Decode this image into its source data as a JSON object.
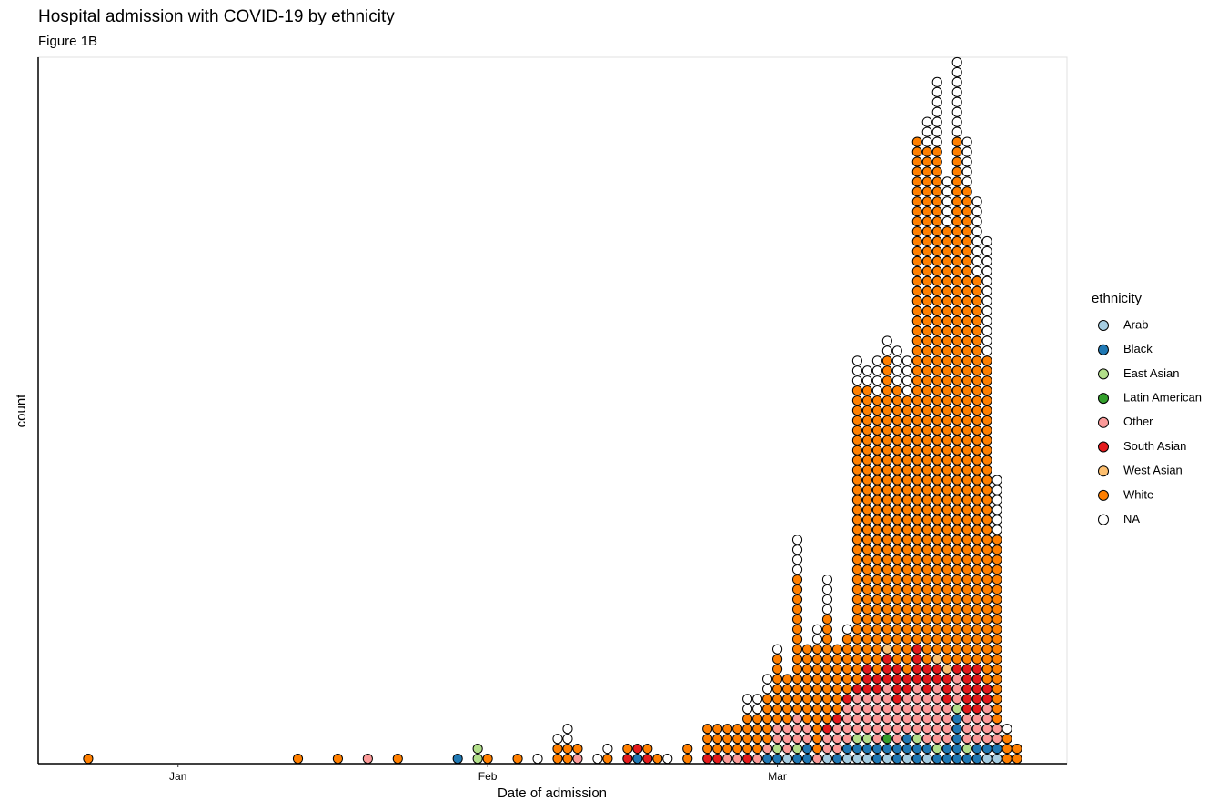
{
  "chart_data": {
    "type": "dotplot",
    "title": "Hospital admission with COVID-19 by ethnicity",
    "subtitle": "Figure 1B",
    "x_label": "Date of admission",
    "y_label": "count",
    "legend_title": "ethnicity",
    "legend": "right",
    "xlim": [
      -14,
      89
    ],
    "ylim": [
      0,
      71
    ],
    "xticks": [
      {
        "value": 0,
        "label": "Jan"
      },
      {
        "value": 31,
        "label": "Feb"
      },
      {
        "value": 60,
        "label": "Mar"
      }
    ],
    "x": [
      -9,
      12,
      16,
      19,
      22,
      28,
      30,
      31,
      34,
      36,
      38,
      39,
      40,
      42,
      43,
      45,
      46,
      47,
      48,
      49,
      51,
      53,
      54,
      55,
      56,
      57,
      58,
      59,
      60,
      61,
      62,
      63,
      64,
      65,
      66,
      67,
      68,
      69,
      70,
      71,
      72,
      73,
      74,
      75,
      76,
      77,
      78,
      79,
      80,
      81,
      82,
      83,
      84
    ],
    "series": [
      {
        "name": "Arab",
        "color": "#a6cee3",
        "values": [
          0,
          0,
          0,
          0,
          0,
          0,
          0,
          0,
          0,
          0,
          0,
          0,
          0,
          0,
          0,
          0,
          0,
          0,
          0,
          0,
          0,
          0,
          0,
          0,
          0,
          0,
          0,
          0,
          0,
          1,
          0,
          0,
          0,
          1,
          0,
          1,
          1,
          1,
          0,
          1,
          0,
          1,
          0,
          1,
          0,
          0,
          0,
          0,
          0,
          1,
          1,
          0,
          0
        ]
      },
      {
        "name": "Black",
        "color": "#1f78b4",
        "values": [
          0,
          0,
          0,
          0,
          0,
          1,
          0,
          0,
          0,
          0,
          0,
          0,
          0,
          0,
          0,
          0,
          1,
          0,
          0,
          0,
          0,
          0,
          0,
          0,
          0,
          0,
          0,
          1,
          1,
          0,
          1,
          2,
          0,
          0,
          1,
          1,
          1,
          1,
          2,
          1,
          2,
          2,
          2,
          1,
          1,
          2,
          5,
          1,
          2,
          1,
          1,
          0,
          0
        ]
      },
      {
        "name": "East Asian",
        "color": "#b2df8a",
        "values": [
          0,
          0,
          0,
          0,
          0,
          0,
          2,
          0,
          0,
          0,
          0,
          0,
          0,
          0,
          0,
          0,
          0,
          0,
          0,
          0,
          0,
          0,
          0,
          0,
          0,
          0,
          0,
          0,
          1,
          0,
          1,
          0,
          0,
          0,
          0,
          0,
          1,
          1,
          0,
          0,
          0,
          0,
          1,
          0,
          1,
          0,
          1,
          1,
          0,
          0,
          0,
          0,
          0
        ]
      },
      {
        "name": "Latin American",
        "color": "#33a02c",
        "values": [
          0,
          0,
          0,
          0,
          0,
          0,
          0,
          0,
          0,
          0,
          0,
          0,
          0,
          0,
          0,
          0,
          0,
          0,
          0,
          0,
          0,
          0,
          0,
          0,
          0,
          0,
          0,
          0,
          0,
          0,
          0,
          0,
          0,
          0,
          0,
          0,
          0,
          0,
          0,
          1,
          0,
          0,
          0,
          0,
          0,
          0,
          0,
          0,
          0,
          0,
          0,
          0,
          0
        ]
      },
      {
        "name": "Other",
        "color": "#fb9a99",
        "values": [
          0,
          0,
          0,
          1,
          0,
          0,
          0,
          0,
          0,
          0,
          0,
          0,
          1,
          0,
          0,
          0,
          0,
          0,
          0,
          0,
          0,
          0,
          0,
          1,
          1,
          0,
          1,
          1,
          2,
          3,
          3,
          2,
          1,
          2,
          3,
          4,
          4,
          4,
          5,
          5,
          4,
          4,
          5,
          5,
          6,
          4,
          3,
          3,
          3,
          4,
          2,
          0,
          0
        ]
      },
      {
        "name": "South Asian",
        "color": "#e31a1c",
        "values": [
          0,
          0,
          0,
          0,
          0,
          0,
          0,
          0,
          0,
          0,
          0,
          0,
          0,
          0,
          0,
          1,
          1,
          1,
          0,
          0,
          0,
          1,
          1,
          0,
          0,
          1,
          0,
          0,
          0,
          0,
          0,
          0,
          0,
          1,
          1,
          1,
          1,
          3,
          2,
          3,
          4,
          2,
          4,
          3,
          2,
          3,
          1,
          5,
          5,
          2,
          0,
          0,
          0
        ]
      },
      {
        "name": "West Asian",
        "color": "#fdbf6f",
        "values": [
          0,
          0,
          0,
          0,
          0,
          0,
          0,
          0,
          0,
          0,
          0,
          0,
          0,
          0,
          0,
          0,
          0,
          0,
          0,
          0,
          0,
          0,
          0,
          0,
          0,
          0,
          0,
          0,
          0,
          0,
          0,
          0,
          0,
          0,
          0,
          0,
          0,
          0,
          0,
          1,
          0,
          0,
          0,
          0,
          1,
          1,
          0,
          0,
          0,
          0,
          0,
          0,
          0
        ]
      },
      {
        "name": "White",
        "color": "#ff7f00",
        "values": [
          1,
          1,
          1,
          0,
          1,
          0,
          0,
          1,
          1,
          0,
          2,
          2,
          1,
          0,
          1,
          1,
          0,
          1,
          1,
          0,
          2,
          3,
          3,
          3,
          3,
          4,
          4,
          5,
          7,
          5,
          14,
          8,
          11,
          11,
          7,
          6,
          30,
          28,
          28,
          29,
          28,
          28,
          51,
          52,
          51,
          44,
          53,
          48,
          39,
          33,
          19,
          3,
          2
        ]
      },
      {
        "name": "NA",
        "color": "#ffffff",
        "values": [
          0,
          0,
          0,
          0,
          0,
          0,
          0,
          0,
          0,
          1,
          1,
          2,
          0,
          1,
          1,
          0,
          0,
          0,
          0,
          1,
          0,
          0,
          0,
          0,
          0,
          2,
          2,
          2,
          1,
          0,
          4,
          0,
          2,
          4,
          0,
          1,
          3,
          2,
          4,
          2,
          4,
          4,
          0,
          3,
          7,
          5,
          8,
          5,
          8,
          12,
          6,
          1,
          0
        ]
      }
    ]
  }
}
